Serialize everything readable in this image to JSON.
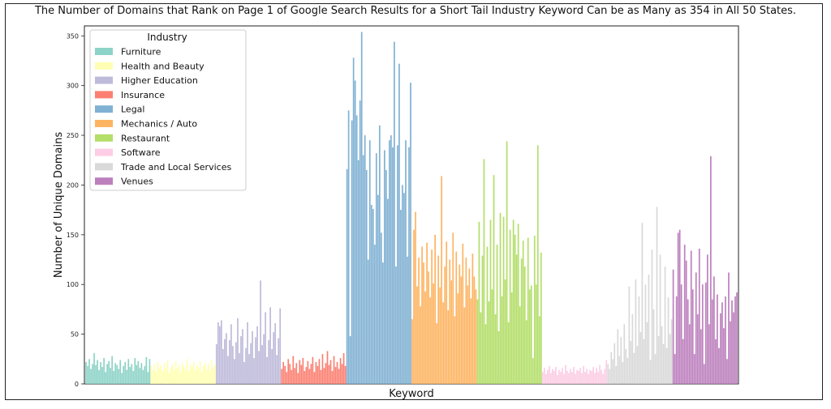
{
  "chart_data": {
    "type": "bar",
    "title": "The Number of Domains that Rank on Page 1 of Google Search Results for a Short Tail Industry Keyword Can be as Many as 354 in All 50 States.",
    "xlabel": "Keyword",
    "ylabel": "Number of Unique Domains",
    "ylim": [
      0,
      360
    ],
    "yticks": [
      0,
      50,
      100,
      150,
      200,
      250,
      300,
      350
    ],
    "grid": false,
    "legend": {
      "title": "Industry",
      "placement": "top-left"
    },
    "series": [
      {
        "name": "Furniture",
        "color": "#8dd3c7",
        "values": [
          22,
          18,
          25,
          15,
          20,
          31,
          19,
          24,
          14,
          22,
          17,
          26,
          12,
          20,
          23,
          16,
          28,
          13,
          21,
          19,
          15,
          24,
          11,
          18,
          22,
          14,
          25,
          17,
          20,
          13,
          26,
          19,
          23,
          16,
          21,
          14,
          18,
          27,
          12,
          25
        ]
      },
      {
        "name": "Health and Beauty",
        "color": "#ffffb3",
        "values": [
          18,
          14,
          20,
          12,
          22,
          16,
          19,
          13,
          21,
          15,
          24,
          11,
          17,
          20,
          14,
          23,
          16,
          19,
          12,
          21,
          18,
          15,
          25,
          13,
          20,
          17,
          22,
          14,
          19,
          16,
          23,
          12,
          18,
          21,
          15,
          20,
          13,
          24,
          17,
          19
        ]
      },
      {
        "name": "Higher Education",
        "color": "#bebada",
        "values": [
          40,
          62,
          58,
          64,
          35,
          45,
          51,
          28,
          44,
          60,
          38,
          25,
          42,
          66,
          31,
          48,
          55,
          22,
          36,
          62,
          30,
          41,
          53,
          26,
          47,
          58,
          33,
          104,
          39,
          50,
          72,
          27,
          44,
          77,
          35,
          52,
          61,
          29,
          46,
          76
        ]
      },
      {
        "name": "Insurance",
        "color": "#fb8072",
        "values": [
          15,
          22,
          18,
          12,
          25,
          20,
          14,
          28,
          16,
          21,
          11,
          24,
          19,
          26,
          13,
          17,
          23,
          15,
          20,
          27,
          12,
          22,
          18,
          25,
          14,
          30,
          16,
          21,
          33,
          19,
          24,
          13,
          28,
          17,
          22,
          15,
          26,
          20,
          31,
          18
        ]
      },
      {
        "name": "Legal",
        "color": "#80b1d3",
        "values": [
          216,
          275,
          48,
          265,
          328,
          305,
          270,
          225,
          285,
          354,
          230,
          250,
          215,
          125,
          245,
          180,
          176,
          140,
          232,
          190,
          260,
          152,
          122,
          235,
          215,
          186,
          245,
          250,
          238,
          344,
          118,
          240,
          322,
          175,
          200,
          192,
          245,
          128,
          238,
          303
        ]
      },
      {
        "name": "Mechanics / Auto",
        "color": "#fdb462",
        "values": [
          65,
          155,
          173,
          98,
          127,
          78,
          138,
          122,
          93,
          142,
          113,
          87,
          135,
          101,
          150,
          61,
          129,
          97,
          209,
          82,
          118,
          143,
          74,
          125,
          104,
          152,
          68,
          133,
          91,
          120,
          108,
          141,
          77,
          127,
          99,
          116,
          86,
          131,
          108,
          95
        ]
      },
      {
        "name": "Restaurant",
        "color": "#b3de69",
        "values": [
          85,
          163,
          72,
          129,
          226,
          60,
          138,
          83,
          165,
          95,
          210,
          70,
          140,
          53,
          172,
          88,
          168,
          105,
          244,
          62,
          155,
          92,
          165,
          150,
          130,
          161,
          78,
          126,
          144,
          118,
          64,
          147,
          95,
          99,
          26,
          149,
          100,
          240,
          68,
          132
        ]
      },
      {
        "name": "Software",
        "color": "#fccde5",
        "values": [
          12,
          16,
          10,
          14,
          18,
          11,
          15,
          13,
          17,
          9,
          14,
          12,
          16,
          10,
          19,
          13,
          11,
          15,
          12,
          17,
          10,
          14,
          13,
          16,
          11,
          18,
          12,
          15,
          10,
          14,
          13,
          17,
          11,
          16,
          12,
          19,
          14,
          10,
          15,
          24
        ]
      },
      {
        "name": "Trade and Local Services",
        "color": "#d9d9d9",
        "values": [
          20,
          15,
          32,
          25,
          41,
          18,
          55,
          28,
          47,
          22,
          60,
          35,
          26,
          98,
          43,
          70,
          31,
          105,
          38,
          88,
          52,
          162,
          45,
          100,
          62,
          110,
          24,
          135,
          75,
          30,
          178,
          48,
          130,
          58,
          40,
          118,
          36,
          87,
          50,
          65
        ]
      },
      {
        "name": "Venues",
        "color": "#bc80bd",
        "values": [
          115,
          30,
          88,
          152,
          155,
          100,
          45,
          140,
          124,
          85,
          60,
          134,
          95,
          30,
          112,
          70,
          136,
          55,
          100,
          20,
          102,
          130,
          60,
          229,
          85,
          108,
          45,
          90,
          36,
          71,
          82,
          56,
          88,
          25,
          112,
          63,
          84,
          72,
          88,
          92
        ]
      }
    ]
  }
}
